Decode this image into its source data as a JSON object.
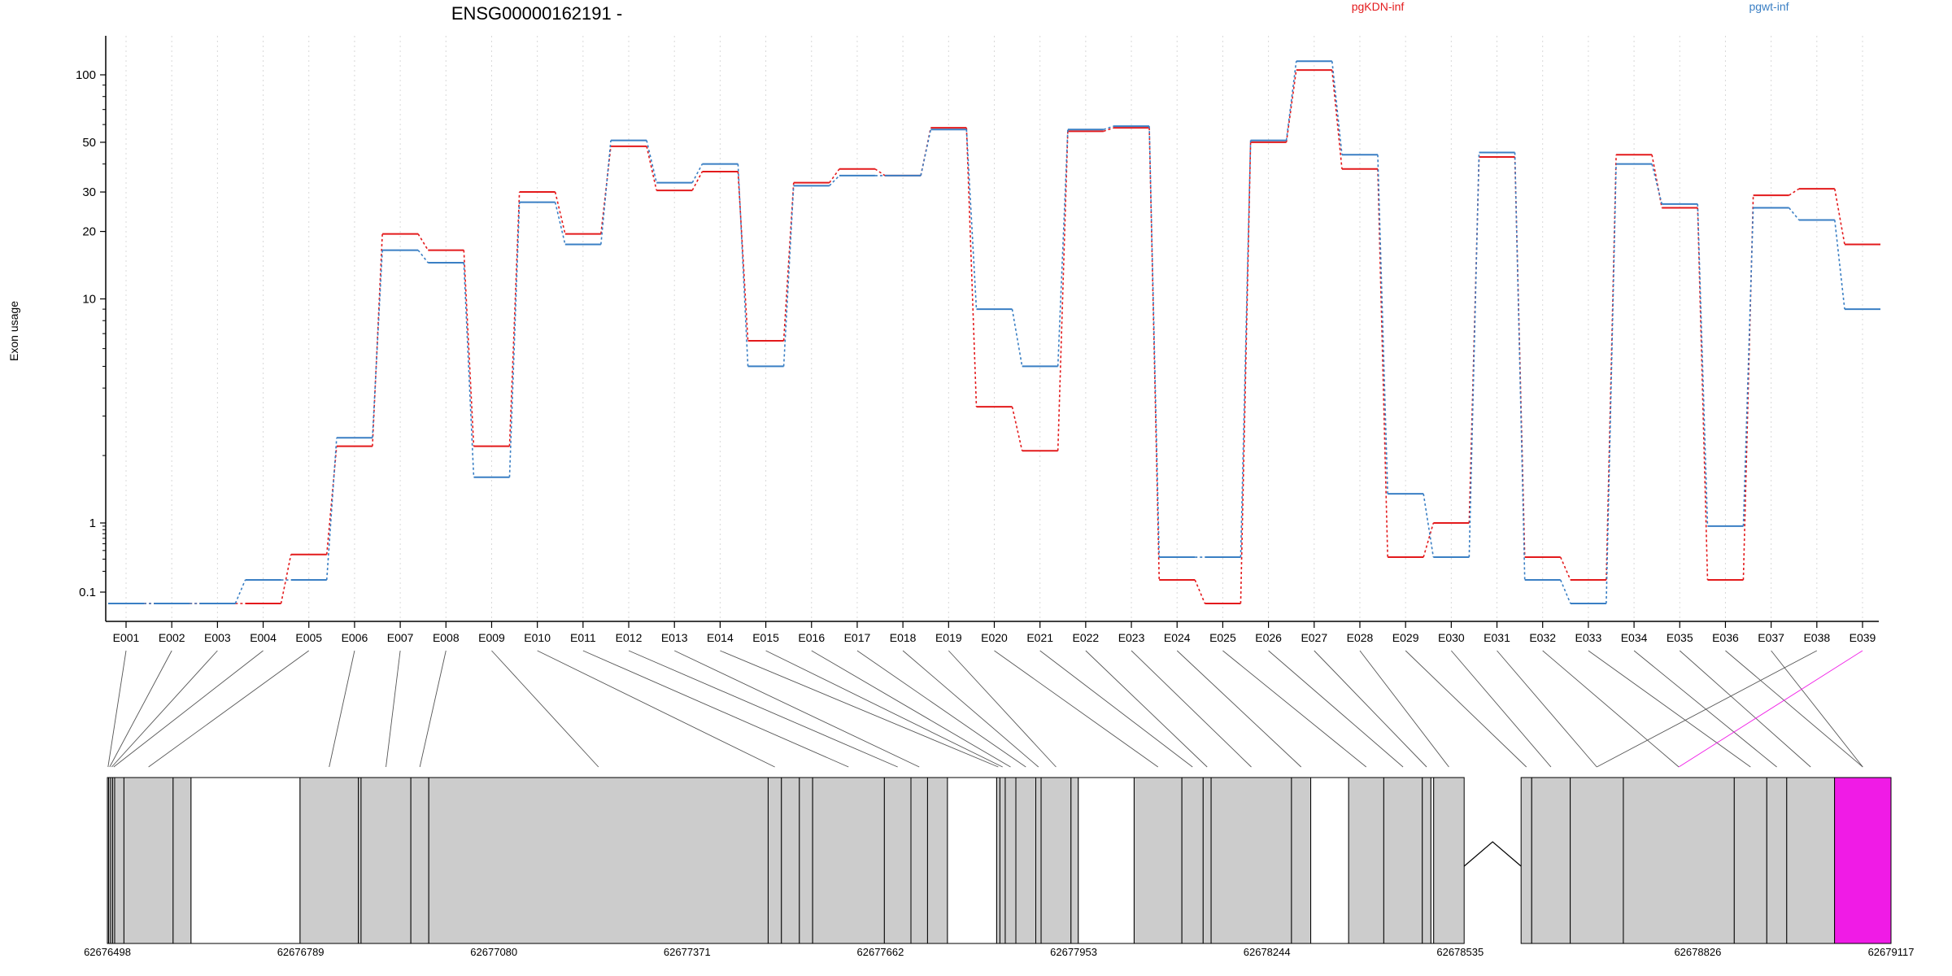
{
  "chart_data": {
    "type": "line",
    "title": "ENSG00000162191 -",
    "ylabel": "Exon usage",
    "xlabel": "",
    "y_scale": "log",
    "grid": "vertical dotted lines at exon positions",
    "legend_placement": "top-right",
    "y_ticks": [
      {
        "value": 0.1,
        "label": "0.1"
      },
      {
        "value": 1,
        "label": "1"
      },
      {
        "value": 10,
        "label": "10"
      },
      {
        "value": 20,
        "label": "20"
      },
      {
        "value": 30,
        "label": "30"
      },
      {
        "value": 50,
        "label": "50"
      },
      {
        "value": 100,
        "label": "100"
      }
    ],
    "categories": [
      "E001",
      "E002",
      "E003",
      "E004",
      "E005",
      "E006",
      "E007",
      "E008",
      "E009",
      "E010",
      "E011",
      "E012",
      "E013",
      "E014",
      "E015",
      "E016",
      "E017",
      "E018",
      "E019",
      "E020",
      "E021",
      "E022",
      "E023",
      "E024",
      "E025",
      "E026",
      "E027",
      "E028",
      "E029",
      "E030",
      "E031",
      "E032",
      "E033",
      "E034",
      "E035",
      "E036",
      "E037",
      "E038",
      "E039"
    ],
    "series": [
      {
        "name": "pgKDN-inf",
        "color": "#e31a1c",
        "values": [
          0.05,
          0.05,
          0.05,
          0.05,
          0.35,
          2.2,
          19.5,
          16.5,
          2.2,
          30,
          19.5,
          48,
          30.5,
          37,
          6.5,
          33,
          38,
          35.5,
          58,
          3.3,
          2.1,
          56,
          58,
          0.15,
          0.05,
          50,
          105,
          38,
          0.32,
          1.0,
          43,
          0.32,
          0.15,
          44,
          25.5,
          0.15,
          29,
          31,
          17.5
        ]
      },
      {
        "name": "pgwt-inf",
        "color": "#3a7fc4",
        "values": [
          0.05,
          0.05,
          0.05,
          0.15,
          0.15,
          2.4,
          16.5,
          14.5,
          1.6,
          27,
          17.5,
          51,
          33,
          40,
          5.0,
          32,
          35.5,
          35.5,
          57,
          9.0,
          5.0,
          57,
          59,
          0.32,
          0.32,
          51,
          115,
          44,
          1.35,
          0.32,
          45,
          0.15,
          0.05,
          40,
          26.5,
          0.9,
          25.5,
          22.5,
          9.0
        ]
      }
    ],
    "gene_model": {
      "x_ticks": [
        {
          "value": 62676498,
          "label": "62676498"
        },
        {
          "value": 62676789,
          "label": "62676789"
        },
        {
          "value": 62677080,
          "label": "62677080"
        },
        {
          "value": 62677371,
          "label": "62677371"
        },
        {
          "value": 62677662,
          "label": "62677662"
        },
        {
          "value": 62677953,
          "label": "62677953"
        },
        {
          "value": 62678244,
          "label": "62678244"
        },
        {
          "value": 62678535,
          "label": "62678535"
        },
        {
          "value": 62678826,
          "label": "62678826"
        },
        {
          "value": 62679117,
          "label": "62679117"
        }
      ],
      "exon_color": "#cccccc",
      "highlight_color": "#f01be6",
      "exons": [
        {
          "start": 62676498,
          "end": 62676500
        },
        {
          "start": 62676500,
          "end": 62676503
        },
        {
          "start": 62676503,
          "end": 62676506
        },
        {
          "start": 62676506,
          "end": 62676509
        },
        {
          "start": 62676509,
          "end": 62676523
        },
        {
          "start": 62676523,
          "end": 62676597
        },
        {
          "start": 62676597,
          "end": 62676624
        },
        {
          "start": 62676788,
          "end": 62676876
        },
        {
          "start": 62676876,
          "end": 62676880
        },
        {
          "start": 62676880,
          "end": 62676955
        },
        {
          "start": 62676955,
          "end": 62676982
        },
        {
          "start": 62676982,
          "end": 62677493
        },
        {
          "start": 62677493,
          "end": 62677513
        },
        {
          "start": 62677513,
          "end": 62677540
        },
        {
          "start": 62677540,
          "end": 62677560
        },
        {
          "start": 62677560,
          "end": 62677668
        },
        {
          "start": 62677668,
          "end": 62677708
        },
        {
          "start": 62677708,
          "end": 62677733
        },
        {
          "start": 62677733,
          "end": 62677763
        },
        {
          "start": 62677837,
          "end": 62677842
        },
        {
          "start": 62677842,
          "end": 62677850
        },
        {
          "start": 62677850,
          "end": 62677866
        },
        {
          "start": 62677866,
          "end": 62677896
        },
        {
          "start": 62677896,
          "end": 62677904
        },
        {
          "start": 62677904,
          "end": 62677949
        },
        {
          "start": 62677949,
          "end": 62677960
        },
        {
          "start": 62678044,
          "end": 62678116
        },
        {
          "start": 62678116,
          "end": 62678148
        },
        {
          "start": 62678148,
          "end": 62678160
        },
        {
          "start": 62678160,
          "end": 62678281
        },
        {
          "start": 62678281,
          "end": 62678310
        },
        {
          "start": 62678367,
          "end": 62678420
        },
        {
          "start": 62678420,
          "end": 62678478
        },
        {
          "start": 62678478,
          "end": 62678491
        },
        {
          "start": 62678495,
          "end": 62678541
        },
        {
          "start": 62678560,
          "end": 62678576
        },
        {
          "start": 62678576,
          "end": 62678634
        },
        {
          "start": 62678634,
          "end": 62678714
        },
        {
          "start": 62678714,
          "end": 62678881
        },
        {
          "start": 62678881,
          "end": 62678930
        },
        {
          "start": 62678930,
          "end": 62678960
        },
        {
          "start": 62678960,
          "end": 62679032
        },
        {
          "start": 62679032,
          "end": 62679117
        }
      ]
    }
  }
}
